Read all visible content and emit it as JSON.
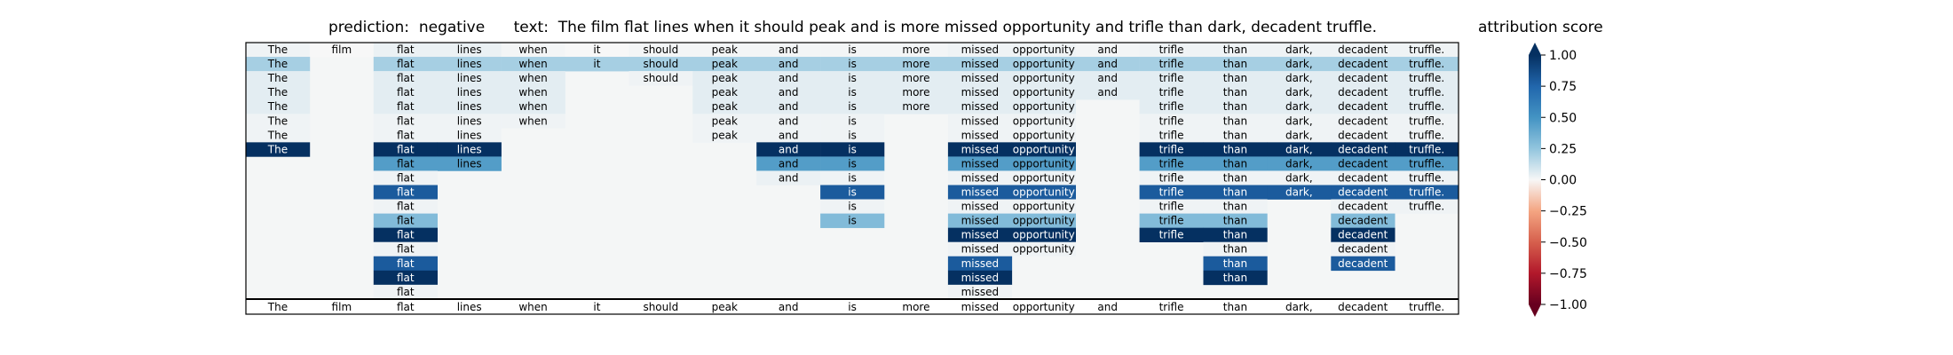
{
  "header": {
    "prediction_label": "prediction:",
    "prediction_value": "negative",
    "text_label": "text:",
    "text_value": "The film flat lines when it should peak and is more missed opportunity and trifle than dark, decadent truffle."
  },
  "colorbar": {
    "title": "attribution score",
    "ticks": [
      "1.00",
      "0.75",
      "0.50",
      "0.25",
      "0.00",
      "−0.25",
      "−0.50",
      "−0.75",
      "−1.00"
    ],
    "range": [
      -1,
      1
    ],
    "colormap": "RdBu"
  },
  "chart_data": {
    "type": "heatmap",
    "tokens": [
      "The",
      "film",
      "flat",
      "lines",
      "when",
      "it",
      "should",
      "peak",
      "and",
      "is",
      "more",
      "missed",
      "opportunity",
      "and",
      "trifle",
      "than",
      "dark,",
      "decadent",
      "truffle."
    ],
    "rows": [
      {
        "shown": [
          1,
          1,
          1,
          1,
          1,
          1,
          1,
          1,
          1,
          1,
          1,
          1,
          1,
          1,
          1,
          1,
          1,
          1,
          1
        ],
        "values": [
          0.02,
          0,
          0.03,
          0.03,
          0.01,
          0,
          0.01,
          0.01,
          0.01,
          0.01,
          0.01,
          0.02,
          0.02,
          0.01,
          0.02,
          0.02,
          0.02,
          0.02,
          0.02
        ]
      },
      {
        "shown": [
          1,
          0,
          1,
          1,
          1,
          1,
          1,
          1,
          1,
          1,
          1,
          1,
          1,
          1,
          1,
          1,
          1,
          1,
          1
        ],
        "values": [
          0.2,
          0,
          0.2,
          0.2,
          0.2,
          0.2,
          0.2,
          0.2,
          0.2,
          0.2,
          0.2,
          0.2,
          0.2,
          0.2,
          0.2,
          0.2,
          0.2,
          0.2,
          0.2
        ]
      },
      {
        "shown": [
          1,
          0,
          1,
          1,
          1,
          0,
          1,
          1,
          1,
          1,
          1,
          1,
          1,
          1,
          1,
          1,
          1,
          1,
          1
        ],
        "values": [
          0.05,
          0,
          0.05,
          0.05,
          0.05,
          0,
          0.02,
          0.05,
          0.05,
          0.05,
          0.05,
          0.05,
          0.05,
          0.05,
          0.05,
          0.05,
          0.05,
          0.05,
          0.05
        ]
      },
      {
        "shown": [
          1,
          0,
          1,
          1,
          1,
          0,
          0,
          1,
          1,
          1,
          1,
          1,
          1,
          1,
          1,
          1,
          1,
          1,
          1
        ],
        "values": [
          0.05,
          0,
          0.05,
          0.05,
          0.05,
          0,
          0,
          0.05,
          0.05,
          0.05,
          0.05,
          0.05,
          0.05,
          0.05,
          0.05,
          0.05,
          0.05,
          0.05,
          0.05
        ]
      },
      {
        "shown": [
          1,
          0,
          1,
          1,
          1,
          0,
          0,
          1,
          1,
          1,
          1,
          1,
          1,
          0,
          1,
          1,
          1,
          1,
          1
        ],
        "values": [
          0.05,
          0,
          0.05,
          0.05,
          0.05,
          0,
          0,
          0.05,
          0.05,
          0.05,
          0.05,
          0.05,
          0.05,
          0,
          0.05,
          0.05,
          0.05,
          0.05,
          0.05
        ]
      },
      {
        "shown": [
          1,
          0,
          1,
          1,
          1,
          0,
          0,
          1,
          1,
          1,
          0,
          1,
          1,
          0,
          1,
          1,
          1,
          1,
          1
        ],
        "values": [
          0.02,
          0,
          0.02,
          0.02,
          0.02,
          0,
          0,
          0.02,
          0.02,
          0.02,
          0,
          0.02,
          0.02,
          0,
          0.02,
          0.02,
          0.02,
          0.02,
          0.02
        ]
      },
      {
        "shown": [
          1,
          0,
          1,
          1,
          0,
          0,
          0,
          1,
          1,
          1,
          0,
          1,
          1,
          0,
          1,
          1,
          1,
          1,
          1
        ],
        "values": [
          0.02,
          0,
          0.02,
          0.02,
          0,
          0,
          0,
          0.02,
          0.02,
          0.02,
          0,
          0.02,
          0.02,
          0,
          0.02,
          0.02,
          0.02,
          0.02,
          0.02
        ]
      },
      {
        "shown": [
          1,
          0,
          1,
          1,
          0,
          0,
          0,
          0,
          1,
          1,
          0,
          1,
          1,
          0,
          1,
          1,
          1,
          1,
          1
        ],
        "values": [
          1.0,
          0,
          1.0,
          1.0,
          0,
          0,
          0,
          0,
          1.0,
          1.0,
          0,
          1.0,
          1.0,
          0,
          1.0,
          1.0,
          1.0,
          1.0,
          1.0
        ]
      },
      {
        "shown": [
          0,
          0,
          1,
          1,
          0,
          0,
          0,
          0,
          1,
          1,
          0,
          1,
          1,
          0,
          1,
          1,
          1,
          1,
          1
        ],
        "values": [
          0,
          0,
          0.45,
          0.45,
          0,
          0,
          0,
          0,
          0.45,
          0.45,
          0,
          0.45,
          0.45,
          0,
          0.45,
          0.45,
          0.45,
          0.45,
          0.45
        ]
      },
      {
        "shown": [
          0,
          0,
          1,
          0,
          0,
          0,
          0,
          0,
          1,
          1,
          0,
          1,
          1,
          0,
          1,
          1,
          1,
          1,
          1
        ],
        "values": [
          0,
          0,
          0.02,
          0,
          0,
          0,
          0,
          0,
          0.03,
          0.02,
          0,
          0.02,
          0.02,
          0,
          0.02,
          0.02,
          0.02,
          0.02,
          0.02
        ]
      },
      {
        "shown": [
          0,
          0,
          1,
          0,
          0,
          0,
          0,
          0,
          0,
          1,
          0,
          1,
          1,
          0,
          1,
          1,
          1,
          1,
          1
        ],
        "values": [
          0,
          0,
          0.8,
          0,
          0,
          0,
          0,
          0,
          0,
          0.8,
          0,
          0.8,
          0.8,
          0,
          0.8,
          0.8,
          0.8,
          0.8,
          0.8
        ]
      },
      {
        "shown": [
          0,
          0,
          1,
          0,
          0,
          0,
          0,
          0,
          0,
          1,
          0,
          1,
          1,
          0,
          1,
          1,
          0,
          1,
          1
        ],
        "values": [
          0,
          0,
          0.02,
          0,
          0,
          0,
          0,
          0,
          0,
          0.02,
          0,
          0.02,
          0.02,
          0,
          0.02,
          0.02,
          0,
          0.02,
          0.02
        ]
      },
      {
        "shown": [
          0,
          0,
          1,
          0,
          0,
          0,
          0,
          0,
          0,
          1,
          0,
          1,
          1,
          0,
          1,
          1,
          0,
          1,
          0
        ],
        "values": [
          0,
          0,
          0.3,
          0,
          0,
          0,
          0,
          0,
          0,
          0.3,
          0,
          0.3,
          0.3,
          0,
          0.3,
          0.3,
          0,
          0.3,
          0
        ]
      },
      {
        "shown": [
          0,
          0,
          1,
          0,
          0,
          0,
          0,
          0,
          0,
          0,
          0,
          1,
          1,
          0,
          1,
          1,
          0,
          1,
          0
        ],
        "values": [
          0,
          0,
          1.0,
          0,
          0,
          0,
          0,
          0,
          0,
          0,
          0,
          1.0,
          1.0,
          0,
          1.0,
          1.0,
          0,
          1.0,
          0
        ]
      },
      {
        "shown": [
          0,
          0,
          1,
          0,
          0,
          0,
          0,
          0,
          0,
          0,
          0,
          1,
          1,
          0,
          0,
          1,
          0,
          1,
          0
        ],
        "values": [
          0,
          0,
          0.02,
          0,
          0,
          0,
          0,
          0,
          0,
          0,
          0,
          0.02,
          0.02,
          0,
          0,
          0.02,
          0,
          0.02,
          0
        ]
      },
      {
        "shown": [
          0,
          0,
          1,
          0,
          0,
          0,
          0,
          0,
          0,
          0,
          0,
          1,
          0,
          0,
          0,
          1,
          0,
          1,
          0
        ],
        "values": [
          0,
          0,
          0.8,
          0,
          0,
          0,
          0,
          0,
          0,
          0,
          0,
          0.8,
          0,
          0,
          0,
          0.8,
          0,
          0.8,
          0
        ]
      },
      {
        "shown": [
          0,
          0,
          1,
          0,
          0,
          0,
          0,
          0,
          0,
          0,
          0,
          1,
          0,
          0,
          0,
          1,
          0,
          0,
          0
        ],
        "values": [
          0,
          0,
          1.0,
          0,
          0,
          0,
          0,
          0,
          0,
          0,
          0,
          1.0,
          0,
          0,
          0,
          1.0,
          0,
          0,
          0
        ]
      },
      {
        "shown": [
          0,
          0,
          1,
          0,
          0,
          0,
          0,
          0,
          0,
          0,
          0,
          1,
          0,
          0,
          0,
          0,
          0,
          0,
          0
        ],
        "values": [
          0,
          0,
          0.02,
          0,
          0,
          0,
          0,
          0,
          0,
          0,
          0,
          0.02,
          0,
          0,
          0,
          0,
          0,
          0,
          0
        ]
      }
    ]
  }
}
